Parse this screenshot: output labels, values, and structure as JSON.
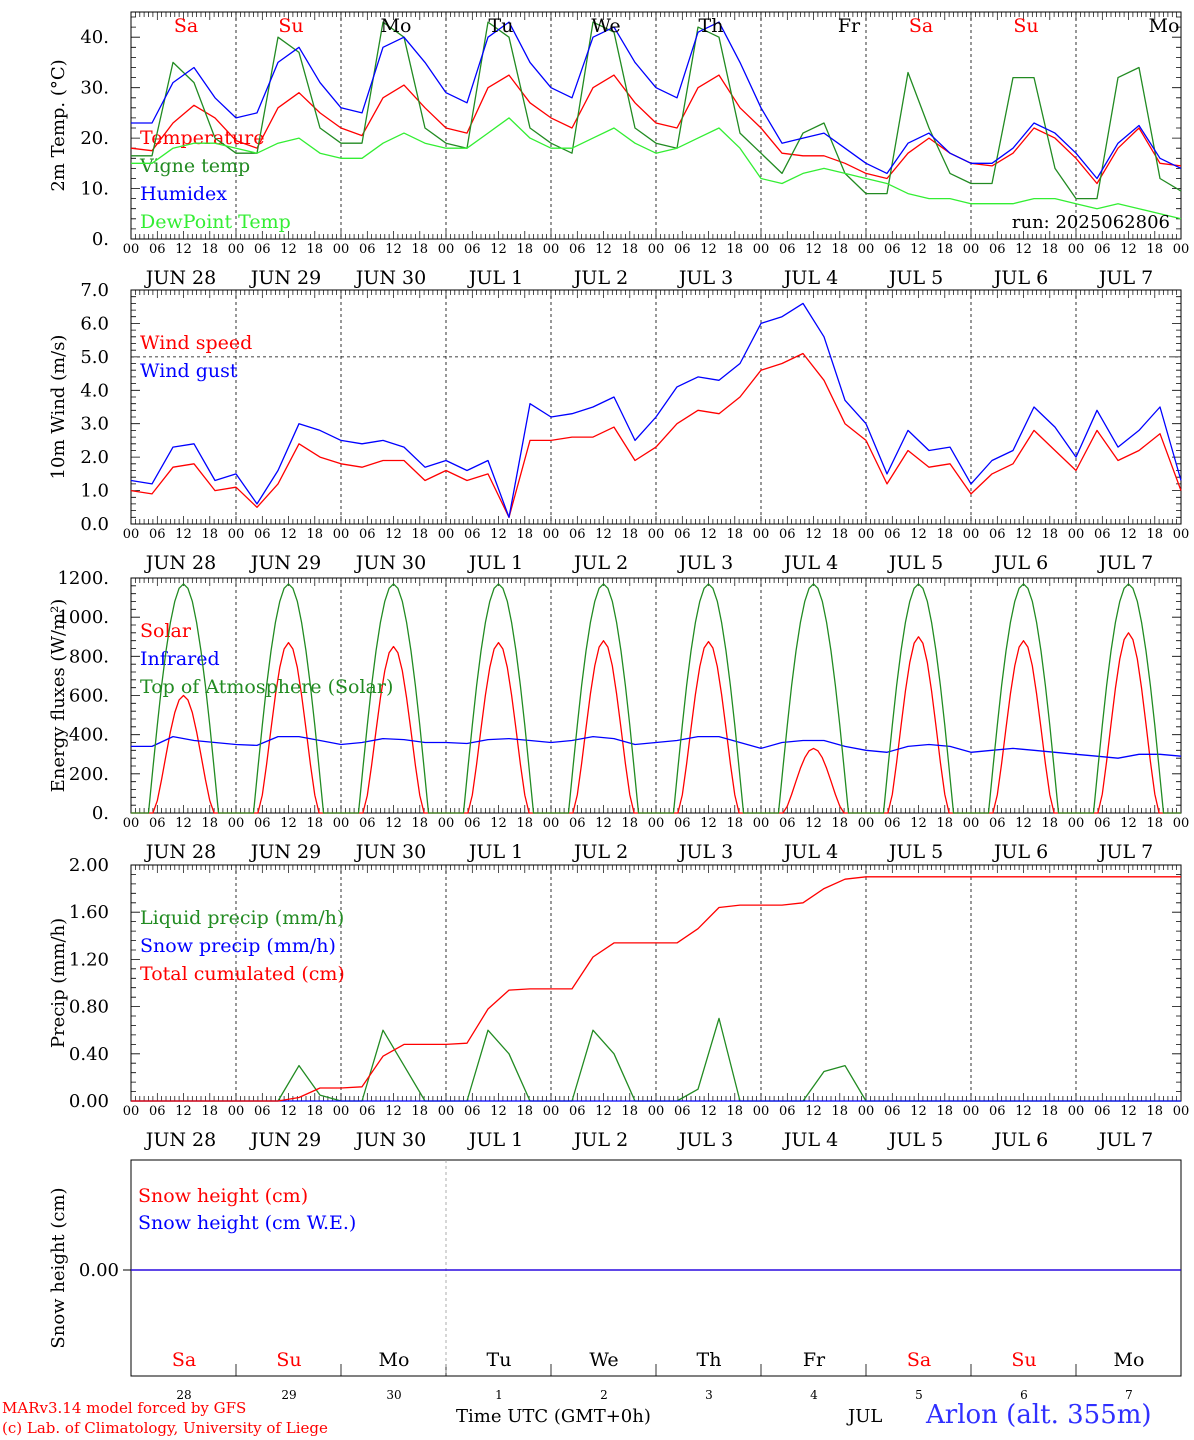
{
  "colors": {
    "red": "#ff0000",
    "green": "#228b22",
    "blue": "#0000ff",
    "light_green": "#33ee33",
    "weekend": "#ff0000",
    "weekday": "#000000"
  },
  "days": {
    "weekdays": [
      "Sa",
      "Su",
      "Mo",
      "Tu",
      "We",
      "Th",
      "Fr",
      "Sa",
      "Su",
      "Mo"
    ],
    "weekend_flags": [
      true,
      true,
      false,
      false,
      false,
      false,
      false,
      true,
      true,
      false
    ],
    "dates": [
      "JUN 28",
      "JUN 29",
      "JUN 30",
      "JUL  1",
      "JUL  2",
      "JUL  3",
      "JUL  4",
      "JUL  5",
      "JUL  6",
      "JUL  7"
    ],
    "day_numbers": [
      "28",
      "29",
      "30",
      "1",
      "2",
      "3",
      "4",
      "5",
      "6",
      "7"
    ],
    "hour_ticks": [
      "00",
      "06",
      "12",
      "18"
    ],
    "final_hour": "00"
  },
  "footer": {
    "credit_line1": "MARv3.14 model forced by GFS",
    "credit_line2": "(c) Lab. of Climatology, University of Liege",
    "xlabel": "Time UTC (GMT+0h)",
    "month": "JUL",
    "station": "Arlon (alt. 355m)"
  },
  "chart_data": [
    {
      "type": "line",
      "ylabel": "2m Temp. (°C)",
      "ylim": [
        0,
        45
      ],
      "yticks": [
        0,
        10,
        20,
        30,
        40
      ],
      "ytick_labels": [
        "0.",
        "10.",
        "20.",
        "30.",
        "40."
      ],
      "annotation": "run: 2025062806",
      "x_hours_step": 6,
      "series": [
        {
          "name": "Temperature",
          "color": "red",
          "values": [
            18,
            17.5,
            23,
            26.5,
            24,
            19.5,
            18,
            26,
            29,
            25,
            22,
            20.5,
            28,
            30.5,
            26,
            22,
            21,
            30,
            32.5,
            27,
            24,
            22,
            30,
            32.5,
            27,
            23,
            22,
            30,
            32.5,
            26,
            22,
            17,
            16.5,
            16.5,
            15,
            13,
            12,
            17,
            20,
            17,
            15,
            14.5,
            17,
            22,
            20,
            16,
            11,
            18,
            22,
            15,
            14.5
          ]
        },
        {
          "name": "Vigne temp",
          "color": "green",
          "values": [
            16.5,
            16.5,
            35,
            31,
            20,
            17,
            17,
            40,
            37,
            22,
            19,
            19,
            43,
            40,
            22,
            19,
            18,
            43,
            40,
            22,
            19,
            17,
            43,
            41,
            22,
            19,
            18,
            42,
            40,
            21,
            17,
            13,
            21,
            23,
            13,
            9,
            9,
            33,
            22,
            13,
            11,
            11,
            32,
            32,
            14,
            8,
            8,
            32,
            34,
            12,
            9.5
          ]
        },
        {
          "name": "Humidex",
          "color": "blue",
          "values": [
            23,
            23,
            31,
            34,
            28,
            24,
            25,
            35,
            38,
            31,
            26,
            25,
            38,
            40,
            35,
            29,
            27,
            40,
            43,
            35,
            30,
            28,
            40,
            42,
            35,
            30,
            28,
            41,
            43,
            35,
            26,
            19,
            20,
            21,
            18,
            15,
            13,
            19,
            21,
            17,
            15,
            15,
            18,
            23,
            21,
            17,
            12,
            19,
            22.5,
            16,
            14
          ]
        },
        {
          "name": "DewPoint Temp",
          "color": "light_green",
          "values": [
            15,
            15,
            18,
            19,
            19,
            18,
            17,
            19,
            20,
            17,
            16,
            16,
            19,
            21,
            19,
            18,
            18,
            21,
            24,
            20,
            18,
            18,
            20,
            22,
            19,
            17,
            18,
            20,
            22,
            18,
            12,
            11,
            13,
            14,
            13,
            12,
            11,
            9,
            8,
            8,
            7,
            7,
            7,
            8,
            8,
            7,
            6,
            7,
            6,
            5,
            4
          ]
        }
      ]
    },
    {
      "type": "line",
      "ylabel": "10m Wind (m/s)",
      "ylim": [
        0,
        7
      ],
      "yticks": [
        0,
        1,
        2,
        3,
        4,
        5,
        6,
        7
      ],
      "ytick_labels": [
        "0.0",
        "1.0",
        "2.0",
        "3.0",
        "4.0",
        "5.0",
        "6.0",
        "7.0"
      ],
      "reference_line": 5,
      "series": [
        {
          "name": "Wind speed",
          "color": "red",
          "values": [
            1,
            0.9,
            1.7,
            1.8,
            1.0,
            1.1,
            0.5,
            1.2,
            2.4,
            2.0,
            1.8,
            1.7,
            1.9,
            1.9,
            1.3,
            1.6,
            1.3,
            1.5,
            0.2,
            2.5,
            2.5,
            2.6,
            2.6,
            2.9,
            1.9,
            2.3,
            3.0,
            3.4,
            3.3,
            3.8,
            4.6,
            4.8,
            5.1,
            4.3,
            3.0,
            2.5,
            1.2,
            2.2,
            1.7,
            1.8,
            0.9,
            1.5,
            1.8,
            2.8,
            2.2,
            1.6,
            2.8,
            1.9,
            2.2,
            2.7,
            1.0
          ]
        },
        {
          "name": "Wind gust",
          "color": "blue",
          "values": [
            1.3,
            1.2,
            2.3,
            2.4,
            1.3,
            1.5,
            0.6,
            1.6,
            3.0,
            2.8,
            2.5,
            2.4,
            2.5,
            2.3,
            1.7,
            1.9,
            1.6,
            1.9,
            0.2,
            3.6,
            3.2,
            3.3,
            3.5,
            3.8,
            2.5,
            3.2,
            4.1,
            4.4,
            4.3,
            4.8,
            6.0,
            6.2,
            6.6,
            5.6,
            3.7,
            3.0,
            1.5,
            2.8,
            2.2,
            2.3,
            1.2,
            1.9,
            2.2,
            3.5,
            2.9,
            2.0,
            3.4,
            2.3,
            2.8,
            3.5,
            1.3
          ]
        }
      ]
    },
    {
      "type": "line",
      "ylabel": "Energy fluxes (W/m²)",
      "ylim": [
        0,
        1200
      ],
      "yticks": [
        0,
        200,
        400,
        600,
        800,
        1000,
        1200
      ],
      "ytick_labels": [
        "0.",
        "200.",
        "400.",
        "600.",
        "800.",
        "1000.",
        "1200."
      ],
      "series": [
        {
          "name": "Solar",
          "color": "red",
          "day_peaks": [
            600,
            870,
            850,
            870,
            880,
            875,
            330,
            900,
            880,
            920
          ]
        },
        {
          "name": "Infrared",
          "color": "blue",
          "values": [
            340,
            340,
            390,
            370,
            360,
            350,
            345,
            390,
            390,
            370,
            350,
            360,
            380,
            375,
            360,
            360,
            355,
            375,
            380,
            370,
            360,
            370,
            390,
            380,
            350,
            360,
            370,
            390,
            390,
            360,
            330,
            360,
            370,
            370,
            340,
            320,
            310,
            340,
            350,
            340,
            310,
            320,
            330,
            320,
            310,
            300,
            290,
            280,
            300,
            300,
            290
          ]
        },
        {
          "name": "Top of Atmosphere (Solar)",
          "color": "green",
          "day_peaks": [
            1170,
            1170,
            1170,
            1170,
            1170,
            1170,
            1170,
            1170,
            1170,
            1170
          ]
        }
      ]
    },
    {
      "type": "line",
      "ylabel": "Precip (mm/h)",
      "ylim": [
        0,
        2.0
      ],
      "yticks": [
        0,
        0.4,
        0.8,
        1.2,
        1.6,
        2.0
      ],
      "ytick_labels": [
        "0.00",
        "0.40",
        "0.80",
        "1.20",
        "1.60",
        "2.00"
      ],
      "series": [
        {
          "name": "Liquid precip (mm/h)",
          "color": "green",
          "values": [
            0,
            0,
            0,
            0,
            0,
            0,
            0,
            0,
            0.3,
            0.05,
            0,
            0,
            0.6,
            0.3,
            0,
            0,
            0,
            0.6,
            0.4,
            0,
            0,
            0,
            0.6,
            0.4,
            0,
            0,
            0,
            0.1,
            0.7,
            0,
            0,
            0,
            0,
            0.25,
            0.3,
            0,
            0,
            0,
            0,
            0,
            0,
            0,
            0,
            0,
            0,
            0,
            0,
            0,
            0,
            0,
            0
          ]
        },
        {
          "name": "Snow precip (mm/h)",
          "color": "blue",
          "values": [
            0,
            0,
            0,
            0,
            0,
            0,
            0,
            0,
            0,
            0,
            0,
            0,
            0,
            0,
            0,
            0,
            0,
            0,
            0,
            0,
            0,
            0,
            0,
            0,
            0,
            0,
            0,
            0,
            0,
            0,
            0,
            0,
            0,
            0,
            0,
            0,
            0,
            0,
            0,
            0,
            0,
            0,
            0,
            0,
            0,
            0,
            0,
            0,
            0,
            0,
            0
          ]
        },
        {
          "name": "Total cumulated (cm)",
          "color": "red",
          "values": [
            0,
            0,
            0,
            0,
            0,
            0,
            0,
            0,
            0.03,
            0.11,
            0.11,
            0.12,
            0.38,
            0.48,
            0.48,
            0.48,
            0.49,
            0.78,
            0.94,
            0.95,
            0.95,
            0.95,
            1.22,
            1.34,
            1.34,
            1.34,
            1.34,
            1.46,
            1.64,
            1.66,
            1.66,
            1.66,
            1.68,
            1.8,
            1.88,
            1.9,
            1.9,
            1.9,
            1.9,
            1.9,
            1.9,
            1.9,
            1.9,
            1.9,
            1.9,
            1.9,
            1.9,
            1.9,
            1.9,
            1.9,
            1.9
          ]
        }
      ]
    },
    {
      "type": "line",
      "ylabel": "Snow height (cm)",
      "ytick_labels": [
        "0.00"
      ],
      "series": [
        {
          "name": "Snow height (cm)",
          "color": "red",
          "values": [
            0,
            0
          ]
        },
        {
          "name": "Snow height (cm W.E.)",
          "color": "blue",
          "values": [
            0,
            0
          ]
        }
      ]
    }
  ]
}
